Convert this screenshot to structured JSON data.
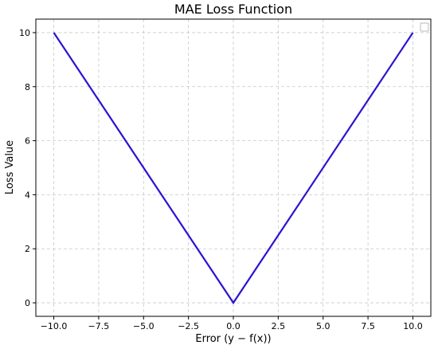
{
  "chart_data": {
    "type": "line",
    "title": "MAE Loss Function",
    "xlabel": "Error (y − f(x))",
    "ylabel": "Loss Value",
    "xlim": [
      -11,
      11
    ],
    "ylim": [
      -0.5,
      10.5
    ],
    "x_ticks": [
      -10.0,
      -7.5,
      -5.0,
      -2.5,
      0.0,
      2.5,
      5.0,
      7.5,
      10.0
    ],
    "x_tick_labels": [
      "−10.0",
      "−7.5",
      "−5.0",
      "−2.5",
      "0.0",
      "2.5",
      "5.0",
      "7.5",
      "10.0"
    ],
    "y_ticks": [
      0,
      2,
      4,
      6,
      8,
      10
    ],
    "y_tick_labels": [
      "0",
      "2",
      "4",
      "6",
      "8",
      "10"
    ],
    "grid": true,
    "grid_style": "dashed",
    "legend": "top-right",
    "series": [
      {
        "color": "#2a12d4",
        "x": [
          -10,
          0,
          10
        ],
        "y": [
          10,
          0,
          10
        ]
      }
    ]
  }
}
